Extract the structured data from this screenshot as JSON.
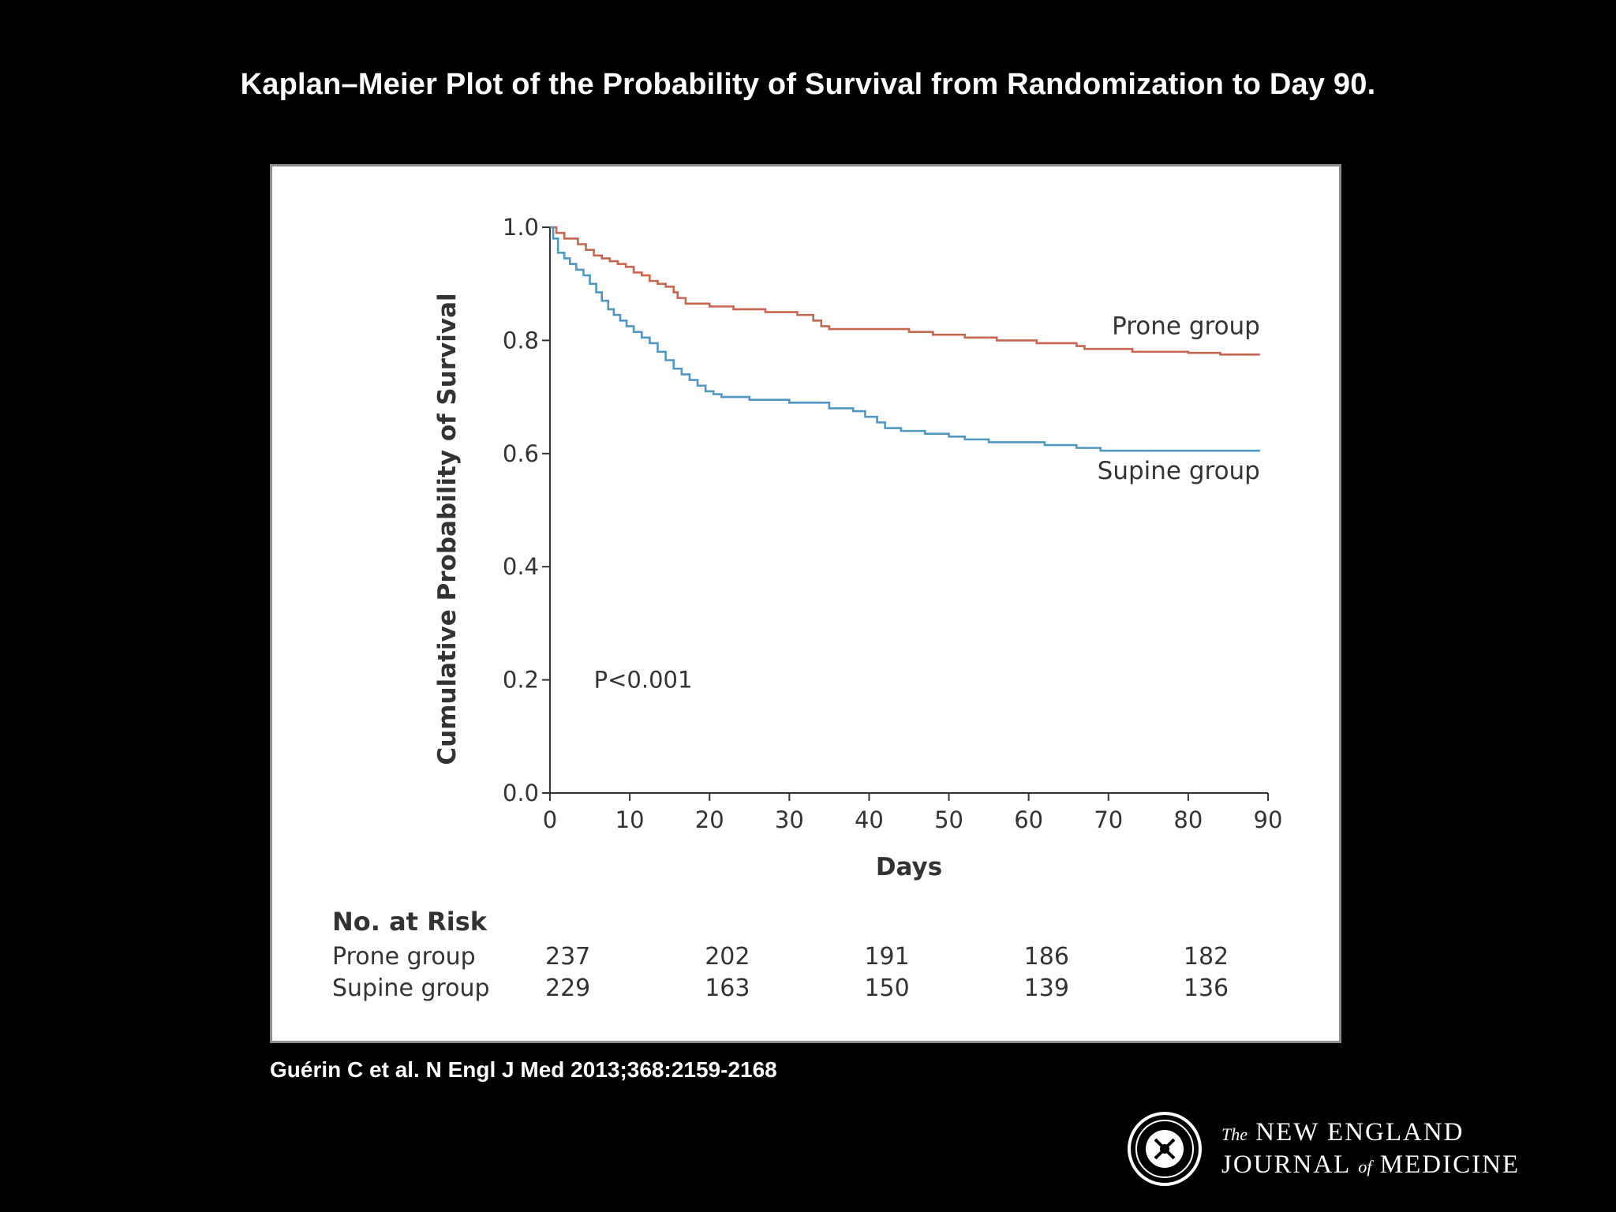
{
  "slide": {
    "title": "Kaplan–Meier Plot of the Probability of Survival from Randomization to Day 90.",
    "citation": "Guérin C et al. N Engl J Med 2013;368:2159-2168",
    "logo": {
      "line1_small": "The",
      "line1": "NEW ENGLAND",
      "line2a": "JOURNAL",
      "line2_small": "of",
      "line2b": "MEDICINE"
    }
  },
  "chart_data": {
    "type": "line",
    "title": "Kaplan–Meier Plot of the Probability of Survival from Randomization to Day 90.",
    "xlabel": "Days",
    "ylabel": "Cumulative Probability of Survival",
    "xlim": [
      0,
      90
    ],
    "ylim": [
      0,
      1.0
    ],
    "xticks": [
      0,
      10,
      20,
      30,
      40,
      50,
      60,
      70,
      80,
      90
    ],
    "yticks": [
      "0.0",
      "0.2",
      "0.4",
      "0.6",
      "0.8",
      "1.0"
    ],
    "yticks_values": [
      0,
      0.2,
      0.4,
      0.6,
      0.8,
      1.0
    ],
    "annotation": "P<0.001",
    "series": [
      {
        "name": "Prone group",
        "color": "#c7654f",
        "x": [
          0,
          0.8,
          1.8,
          3.5,
          4.5,
          5.5,
          6.5,
          7.5,
          8.5,
          9.5,
          10.5,
          11.5,
          12.5,
          13.5,
          14.5,
          15.5,
          16,
          17,
          20,
          23,
          27,
          31,
          33,
          34,
          35,
          45,
          48,
          52,
          56,
          61,
          66,
          67,
          73,
          76,
          80,
          84,
          89
        ],
        "y": [
          1.0,
          0.99,
          0.98,
          0.97,
          0.96,
          0.95,
          0.945,
          0.94,
          0.935,
          0.93,
          0.92,
          0.915,
          0.905,
          0.9,
          0.895,
          0.885,
          0.875,
          0.865,
          0.86,
          0.855,
          0.85,
          0.845,
          0.835,
          0.825,
          0.82,
          0.815,
          0.81,
          0.805,
          0.8,
          0.795,
          0.79,
          0.785,
          0.78,
          0.78,
          0.778,
          0.775,
          0.775
        ]
      },
      {
        "name": "Supine group",
        "color": "#4f97c3",
        "x": [
          0,
          0.4,
          1,
          1.8,
          2.5,
          3.3,
          4.2,
          5,
          5.8,
          6.5,
          7.3,
          8,
          8.8,
          9.6,
          10.5,
          11.5,
          12.5,
          13.5,
          14.5,
          15.5,
          16.5,
          17.5,
          18.5,
          19.5,
          20.5,
          21.5,
          25,
          30,
          35,
          38,
          39.5,
          41,
          42,
          44,
          47,
          50,
          52,
          55,
          62,
          66,
          69,
          89
        ],
        "y": [
          1.0,
          0.98,
          0.955,
          0.945,
          0.935,
          0.925,
          0.915,
          0.9,
          0.885,
          0.87,
          0.855,
          0.845,
          0.835,
          0.825,
          0.815,
          0.805,
          0.795,
          0.78,
          0.765,
          0.75,
          0.74,
          0.73,
          0.72,
          0.71,
          0.705,
          0.7,
          0.695,
          0.69,
          0.68,
          0.675,
          0.665,
          0.655,
          0.645,
          0.64,
          0.635,
          0.63,
          0.625,
          0.62,
          0.615,
          0.61,
          0.605,
          0.605
        ]
      }
    ],
    "at_risk": {
      "heading": "No. at Risk",
      "days": [
        0,
        20,
        40,
        60,
        80
      ],
      "rows": [
        {
          "label": "Prone group",
          "values": [
            "237",
            "202",
            "191",
            "186",
            "182"
          ]
        },
        {
          "label": "Supine group",
          "values": [
            "229",
            "163",
            "150",
            "139",
            "136"
          ]
        }
      ]
    },
    "axis_color": "#333333",
    "grid": false
  }
}
